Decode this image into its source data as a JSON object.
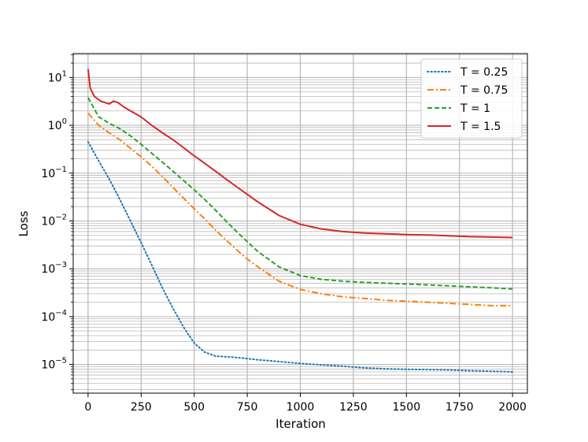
{
  "chart_data": {
    "type": "line",
    "title": "",
    "xlabel": "Iteration",
    "ylabel": "Loss",
    "xlim": [
      -70,
      2070
    ],
    "ylim_log10": [
      -5.6,
      1.5
    ],
    "yscale": "log",
    "grid": "on (major and minor)",
    "legend_position": "top-right",
    "x_ticks": [
      0,
      250,
      500,
      750,
      1000,
      1250,
      1500,
      1750,
      2000
    ],
    "y_ticks": [
      {
        "base": "10",
        "exp": "1",
        "value": 10
      },
      {
        "base": "10",
        "exp": "0",
        "value": 1
      },
      {
        "base": "10",
        "exp": "−1",
        "value": 0.1
      },
      {
        "base": "10",
        "exp": "−2",
        "value": 0.01
      },
      {
        "base": "10",
        "exp": "−3",
        "value": 0.001
      },
      {
        "base": "10",
        "exp": "−4",
        "value": 0.0001
      },
      {
        "base": "10",
        "exp": "−5",
        "value": 1e-05
      }
    ],
    "series": [
      {
        "name": "T =  0.25",
        "color": "#1f77b4",
        "style": "dotted",
        "x": [
          0,
          50,
          100,
          150,
          200,
          250,
          300,
          350,
          400,
          450,
          500,
          550,
          600,
          700,
          800,
          900,
          1000,
          1100,
          1200,
          1300,
          1400,
          1500,
          1600,
          1700,
          1800,
          1900,
          2000
        ],
        "y": [
          0.45,
          0.18,
          0.075,
          0.028,
          0.01,
          0.0035,
          0.0012,
          0.0004,
          0.00015,
          6e-05,
          2.8e-05,
          1.8e-05,
          1.5e-05,
          1.4e-05,
          1.25e-05,
          1.15e-05,
          1.05e-05,
          9.8e-06,
          9.2e-06,
          8.5e-06,
          8.1e-06,
          7.9e-06,
          7.8e-06,
          7.7e-06,
          7.4e-06,
          7.2e-06,
          7e-06
        ]
      },
      {
        "name": "T =  0.75",
        "color": "#ff7f0e",
        "style": "dashdot",
        "x": [
          0,
          50,
          100,
          150,
          200,
          250,
          300,
          350,
          400,
          450,
          500,
          550,
          600,
          650,
          700,
          750,
          800,
          900,
          1000,
          1100,
          1200,
          1300,
          1400,
          1500,
          1600,
          1700,
          1800,
          1900,
          2000
        ],
        "y": [
          1.8,
          1.0,
          0.7,
          0.5,
          0.33,
          0.22,
          0.14,
          0.085,
          0.05,
          0.03,
          0.018,
          0.011,
          0.0065,
          0.004,
          0.0025,
          0.0016,
          0.0011,
          0.00055,
          0.00037,
          0.0003,
          0.00026,
          0.00024,
          0.00022,
          0.00021,
          0.0002,
          0.00019,
          0.00018,
          0.00017,
          0.00017
        ]
      },
      {
        "name": "T =  1",
        "color": "#2ca02c",
        "style": "dashed",
        "x": [
          0,
          50,
          100,
          150,
          200,
          250,
          300,
          350,
          400,
          450,
          500,
          550,
          600,
          650,
          700,
          750,
          800,
          900,
          1000,
          1100,
          1200,
          1300,
          1400,
          1500,
          1600,
          1700,
          1800,
          1900,
          2000
        ],
        "y": [
          3.8,
          1.5,
          1.1,
          0.85,
          0.6,
          0.4,
          0.26,
          0.17,
          0.11,
          0.07,
          0.045,
          0.028,
          0.017,
          0.01,
          0.006,
          0.0037,
          0.0023,
          0.0011,
          0.00072,
          0.0006,
          0.00055,
          0.00052,
          0.0005,
          0.00048,
          0.00046,
          0.00044,
          0.00042,
          0.0004,
          0.00038
        ]
      },
      {
        "name": "T =  1.5",
        "color": "#d62728",
        "style": "solid",
        "x": [
          0,
          10,
          30,
          60,
          100,
          120,
          140,
          170,
          200,
          250,
          300,
          350,
          400,
          450,
          500,
          550,
          600,
          650,
          700,
          750,
          800,
          900,
          1000,
          1100,
          1200,
          1300,
          1400,
          1500,
          1600,
          1700,
          1800,
          1900,
          2000
        ],
        "y": [
          15,
          6,
          4,
          3.2,
          2.8,
          3.2,
          3.0,
          2.4,
          2.0,
          1.5,
          1.0,
          0.7,
          0.5,
          0.34,
          0.23,
          0.16,
          0.11,
          0.075,
          0.052,
          0.036,
          0.025,
          0.013,
          0.0085,
          0.0068,
          0.006,
          0.0056,
          0.0054,
          0.0052,
          0.0051,
          0.0049,
          0.0047,
          0.0046,
          0.0045
        ]
      }
    ]
  }
}
